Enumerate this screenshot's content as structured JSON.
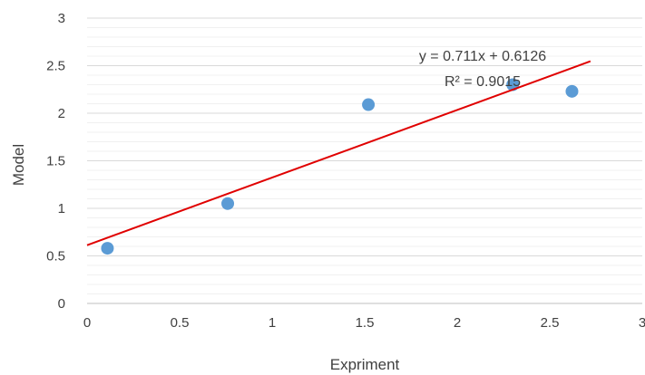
{
  "chart_data": {
    "type": "scatter",
    "title": "",
    "xlabel": "Expriment",
    "ylabel": "Model",
    "xlim": [
      0,
      3
    ],
    "ylim": [
      0,
      3
    ],
    "x_ticks": [
      "0",
      "0.5",
      "1",
      "1.5",
      "2",
      "2.5",
      "3"
    ],
    "y_ticks": [
      "0",
      "0.5",
      "1",
      "1.5",
      "2",
      "2.5",
      "3"
    ],
    "grid": true,
    "legend": "none",
    "series": [
      {
        "points": [
          {
            "x": 0.11,
            "y": 0.58
          },
          {
            "x": 0.76,
            "y": 1.05
          },
          {
            "x": 1.52,
            "y": 2.09
          },
          {
            "x": 2.3,
            "y": 2.3
          },
          {
            "x": 2.62,
            "y": 2.23
          }
        ],
        "color": "#5b9bd5"
      }
    ],
    "trendline": {
      "slope": 0.711,
      "intercept": 0.6126,
      "x_range": [
        0,
        2.72
      ],
      "color": "#e00000",
      "equation": "y = 0.711x + 0.6126",
      "r_squared": "R² = 0.9015"
    }
  }
}
